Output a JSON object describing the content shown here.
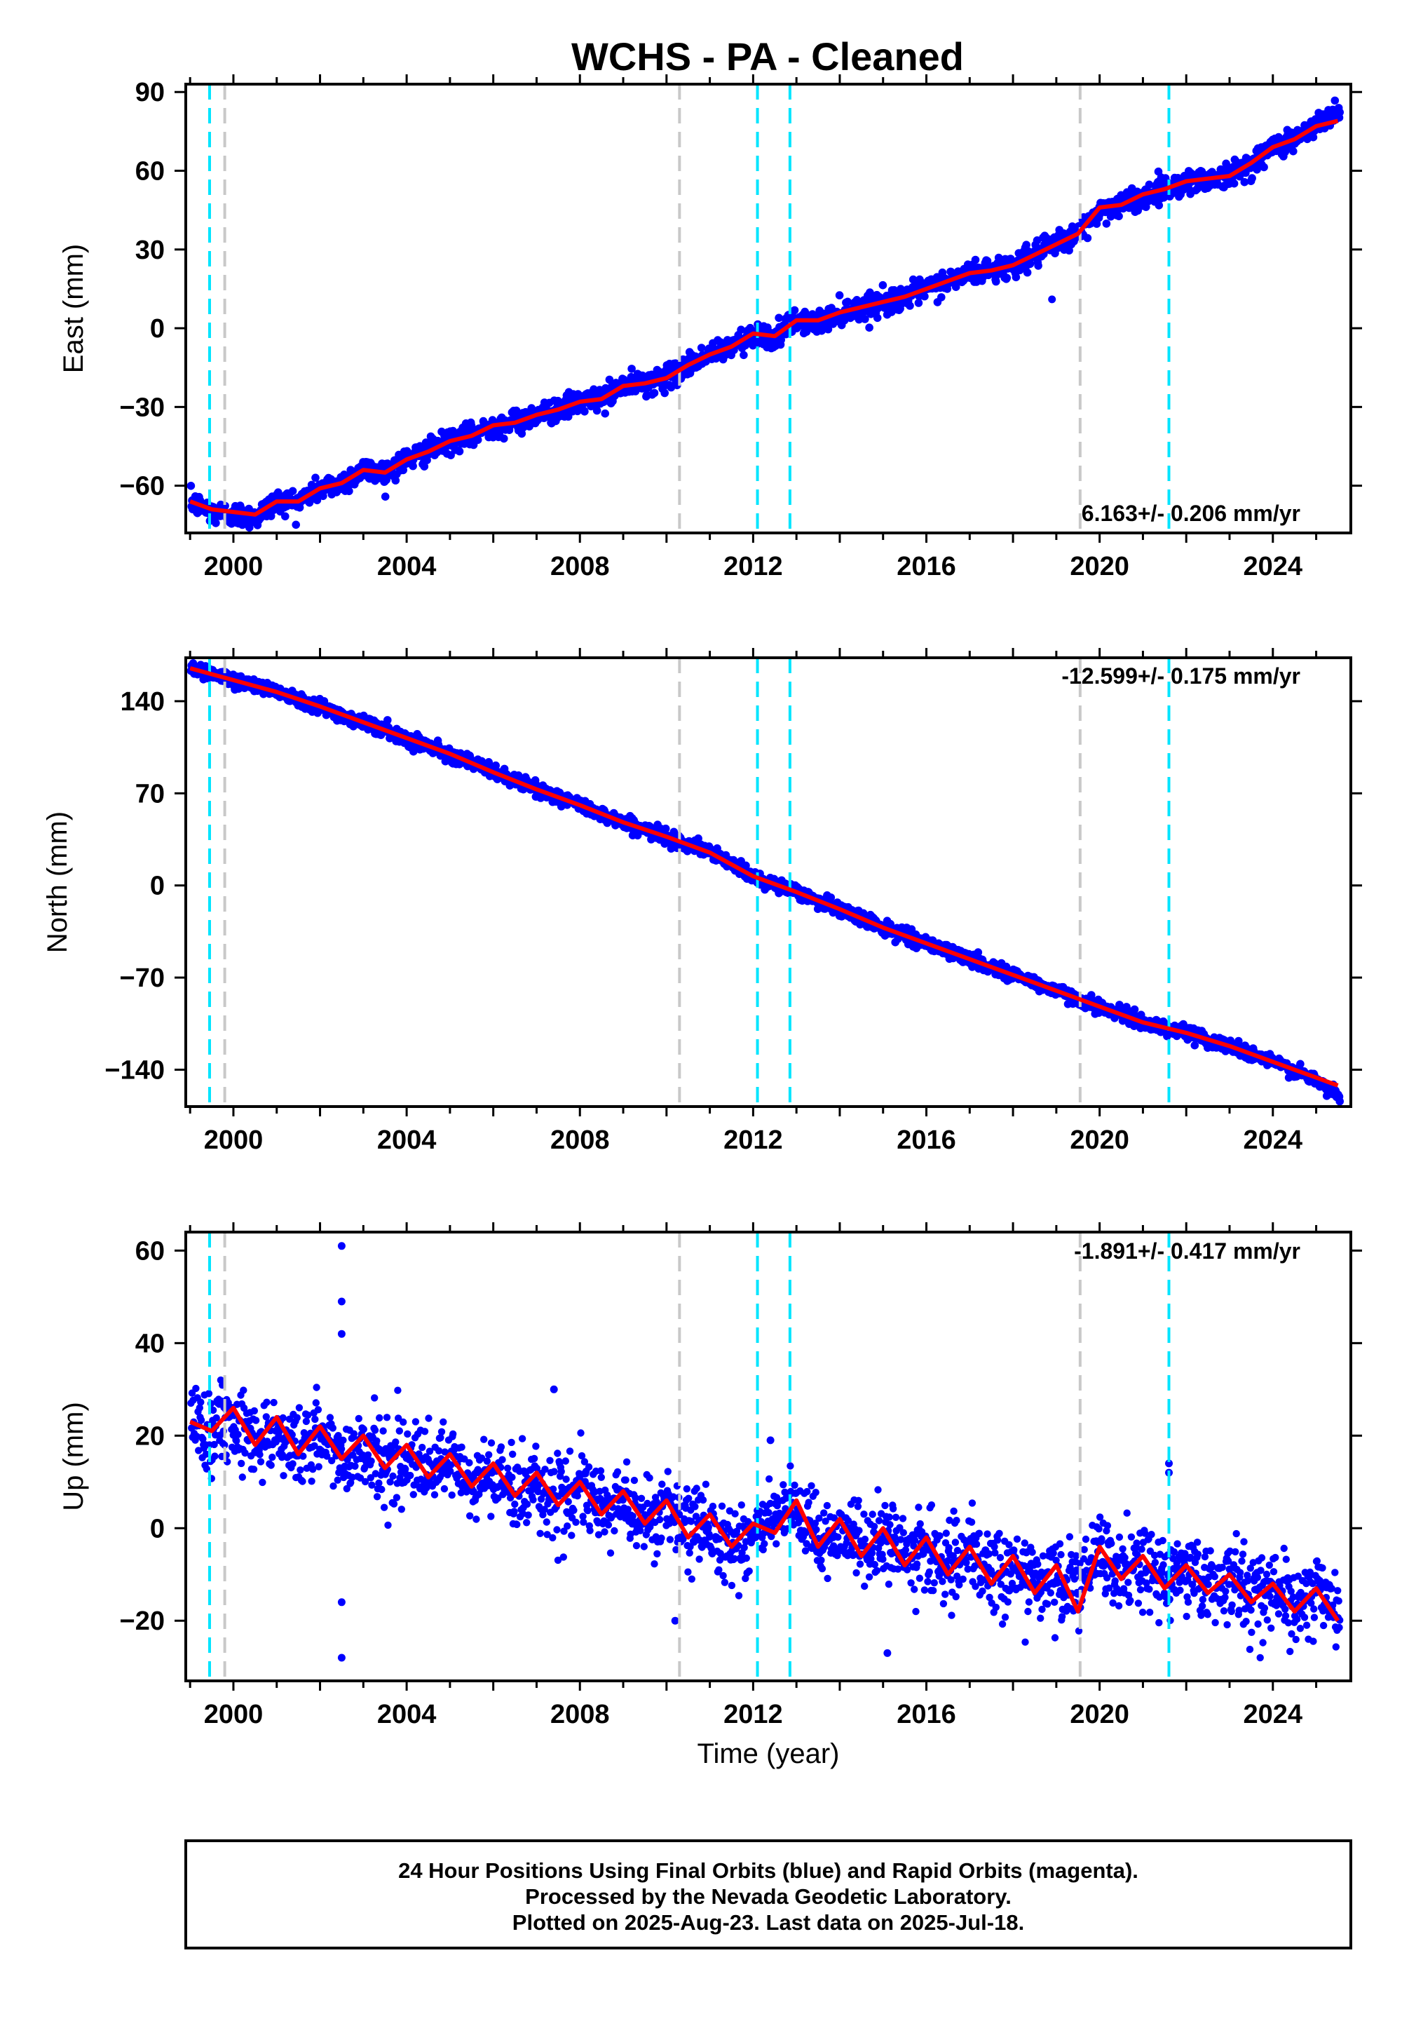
{
  "figure": {
    "title": "WCHS  - PA - Cleaned",
    "xlabel": "Time (year)",
    "footer": [
      "24 Hour Positions Using Final Orbits (blue) and Rapid Orbits (magenta).",
      "Processed by the Nevada Geodetic Laboratory.",
      "Plotted on 2025-Aug-23. Last data on 2025-Jul-18."
    ]
  },
  "colors": {
    "data": "#0000ff",
    "model": "#ff0000",
    "cyan_line": "#00e5ff",
    "gray_line": "#c8c8c8"
  },
  "chart_data": [
    {
      "type": "scatter",
      "ylabel": "East (mm)",
      "rate_label": "6.163+/- 0.206 mm/yr",
      "xlim": [
        1998.9,
        2025.8
      ],
      "ylim": [
        -78,
        93
      ],
      "yticks": [
        -60,
        -30,
        0,
        30,
        60,
        90
      ],
      "xticks": [
        2000,
        2004,
        2008,
        2012,
        2016,
        2020,
        2024
      ],
      "cyan_events": [
        1999.45,
        2012.1,
        2012.85,
        2021.6
      ],
      "gray_events": [
        1999.8,
        2010.3,
        2019.55
      ],
      "series": [
        {
          "name": "24 Hour Positions (blue)",
          "x": [
            1999.0,
            1999.5,
            2000.0,
            2000.5,
            2001.0,
            2001.5,
            2002.0,
            2002.5,
            2003.0,
            2003.5,
            2004.0,
            2004.5,
            2005.0,
            2005.5,
            2006.0,
            2006.5,
            2007.0,
            2007.5,
            2008.0,
            2008.5,
            2009.0,
            2009.5,
            2010.0,
            2010.5,
            2011.0,
            2011.5,
            2012.0,
            2012.5,
            2013.0,
            2013.5,
            2014.0,
            2014.5,
            2015.0,
            2015.5,
            2016.0,
            2016.5,
            2017.0,
            2017.5,
            2018.0,
            2018.5,
            2019.0,
            2019.5,
            2020.0,
            2020.5,
            2021.0,
            2021.5,
            2022.0,
            2022.5,
            2023.0,
            2023.5,
            2024.0,
            2024.5,
            2025.0,
            2025.5
          ],
          "y": [
            -66,
            -70,
            -71,
            -72,
            -66,
            -66,
            -61,
            -59,
            -54,
            -55,
            -50,
            -47,
            -43,
            -41,
            -37,
            -36,
            -33,
            -31,
            -28,
            -27,
            -22,
            -21,
            -19,
            -14,
            -10,
            -7,
            -2,
            -4,
            3,
            2,
            6,
            8,
            10,
            12,
            15,
            18,
            21,
            22,
            24,
            28,
            32,
            36,
            45,
            47,
            50,
            53,
            56,
            57,
            58,
            63,
            69,
            72,
            77,
            83
          ]
        },
        {
          "name": "Model (red)",
          "x": [
            1999.0,
            1999.5,
            2000.0,
            2000.5,
            2001.0,
            2001.5,
            2002.0,
            2002.5,
            2003.0,
            2003.5,
            2004.0,
            2004.5,
            2005.0,
            2005.5,
            2006.0,
            2006.5,
            2007.0,
            2007.5,
            2008.0,
            2008.5,
            2009.0,
            2009.5,
            2010.0,
            2010.5,
            2011.0,
            2011.5,
            2012.0,
            2012.5,
            2013.0,
            2013.5,
            2014.0,
            2014.5,
            2015.0,
            2015.5,
            2016.0,
            2016.5,
            2017.0,
            2017.5,
            2018.0,
            2018.5,
            2019.0,
            2019.5,
            2020.0,
            2020.5,
            2021.0,
            2021.5,
            2022.0,
            2022.5,
            2023.0,
            2023.5,
            2024.0,
            2024.5,
            2025.0,
            2025.5
          ],
          "y": [
            -66,
            -69,
            -70,
            -71,
            -66,
            -66,
            -61,
            -59,
            -54,
            -55,
            -50,
            -47,
            -43,
            -41,
            -37,
            -36,
            -33,
            -31,
            -28,
            -27,
            -22,
            -21,
            -19,
            -14,
            -10,
            -7,
            -2,
            -3,
            3,
            3,
            6,
            8,
            10,
            12,
            15,
            18,
            21,
            22,
            24,
            28,
            32,
            36,
            46,
            47,
            51,
            53,
            56,
            57,
            58,
            63,
            69,
            72,
            77,
            79
          ]
        }
      ]
    },
    {
      "type": "scatter",
      "ylabel": "North (mm)",
      "rate_label": "-12.599+/- 0.175 mm/yr",
      "xlim": [
        1998.9,
        2025.8
      ],
      "ylim": [
        -168,
        173
      ],
      "yticks": [
        -140,
        -70,
        0,
        70,
        140
      ],
      "xticks": [
        2000,
        2004,
        2008,
        2012,
        2016,
        2020,
        2024
      ],
      "cyan_events": [
        1999.45,
        2012.1,
        2012.85,
        2021.6
      ],
      "gray_events": [
        1999.8,
        2010.3,
        2019.55
      ],
      "series": [
        {
          "name": "24 Hour Positions (blue)",
          "x": [
            1999.0,
            2000.0,
            2001.0,
            2002.0,
            2003.0,
            2004.0,
            2005.0,
            2006.0,
            2007.0,
            2008.0,
            2009.0,
            2010.0,
            2011.0,
            2012.0,
            2013.0,
            2014.0,
            2015.0,
            2016.0,
            2017.0,
            2018.0,
            2019.0,
            2020.0,
            2021.0,
            2022.0,
            2023.0,
            2024.0,
            2025.0,
            2025.5
          ],
          "y": [
            166,
            156,
            148,
            136,
            124,
            112,
            100,
            86,
            73,
            61,
            48,
            37,
            25,
            7,
            -5,
            -18,
            -32,
            -44,
            -56,
            -68,
            -80,
            -92,
            -104,
            -112,
            -122,
            -134,
            -148,
            -160
          ]
        },
        {
          "name": "Model (red)",
          "x": [
            1999.0,
            2000.0,
            2001.0,
            2002.0,
            2003.0,
            2004.0,
            2005.0,
            2006.0,
            2007.0,
            2008.0,
            2009.0,
            2010.0,
            2011.0,
            2012.0,
            2013.0,
            2014.0,
            2015.0,
            2016.0,
            2017.0,
            2018.0,
            2019.0,
            2020.0,
            2021.0,
            2022.0,
            2023.0,
            2024.0,
            2025.0,
            2025.5
          ],
          "y": [
            165,
            156,
            147,
            136,
            124,
            112,
            100,
            86,
            73,
            61,
            48,
            37,
            25,
            7,
            -5,
            -18,
            -32,
            -44,
            -56,
            -68,
            -80,
            -92,
            -104,
            -112,
            -122,
            -134,
            -146,
            -152
          ]
        }
      ]
    },
    {
      "type": "scatter",
      "ylabel": "Up (mm)",
      "rate_label": "-1.891+/- 0.417 mm/yr",
      "xlim": [
        1998.9,
        2025.8
      ],
      "ylim": [
        -33,
        64
      ],
      "yticks": [
        -20,
        0,
        20,
        40,
        60
      ],
      "xticks": [
        2000,
        2004,
        2008,
        2012,
        2016,
        2020,
        2024
      ],
      "cyan_events": [
        1999.45,
        2012.1,
        2012.85,
        2021.6
      ],
      "gray_events": [
        1999.8,
        2010.3,
        2019.55
      ],
      "series": [
        {
          "name": "24 Hour Positions (blue)",
          "x": [
            1999.0,
            1999.5,
            2000.0,
            2000.5,
            2001.0,
            2001.5,
            2002.0,
            2002.5,
            2003.0,
            2003.5,
            2004.0,
            2004.5,
            2005.0,
            2005.5,
            2006.0,
            2006.5,
            2007.0,
            2007.5,
            2008.0,
            2008.5,
            2009.0,
            2009.5,
            2010.0,
            2010.5,
            2011.0,
            2011.5,
            2012.0,
            2012.5,
            2013.0,
            2013.5,
            2014.0,
            2014.5,
            2015.0,
            2015.5,
            2016.0,
            2016.5,
            2017.0,
            2017.5,
            2018.0,
            2018.5,
            2019.0,
            2019.5,
            2020.0,
            2020.5,
            2021.0,
            2021.5,
            2022.0,
            2022.5,
            2023.0,
            2023.5,
            2024.0,
            2024.5,
            2025.0,
            2025.5
          ],
          "y": [
            23,
            22,
            24,
            19,
            21,
            17,
            20,
            15,
            18,
            14,
            15,
            12,
            14,
            9,
            12,
            8,
            10,
            6,
            8,
            4,
            6,
            2,
            4,
            -1,
            1,
            -4,
            -1,
            2,
            3,
            -3,
            0,
            -4,
            -2,
            -6,
            -4,
            -8,
            -6,
            -10,
            -8,
            -12,
            -11,
            -13,
            -6,
            -10,
            -7,
            -12,
            -8,
            -13,
            -10,
            -14,
            -13,
            -17,
            -13,
            -18
          ]
        },
        {
          "name": "Model (red)",
          "x": [
            1999.0,
            1999.5,
            2000.0,
            2000.5,
            2001.0,
            2001.5,
            2002.0,
            2002.5,
            2003.0,
            2003.5,
            2004.0,
            2004.5,
            2005.0,
            2005.5,
            2006.0,
            2006.5,
            2007.0,
            2007.5,
            2008.0,
            2008.5,
            2009.0,
            2009.5,
            2010.0,
            2010.5,
            2011.0,
            2011.5,
            2012.0,
            2012.5,
            2013.0,
            2013.5,
            2014.0,
            2014.5,
            2015.0,
            2015.5,
            2016.0,
            2016.5,
            2017.0,
            2017.5,
            2018.0,
            2018.5,
            2019.0,
            2019.5,
            2020.0,
            2020.5,
            2021.0,
            2021.5,
            2022.0,
            2022.5,
            2023.0,
            2023.5,
            2024.0,
            2024.5,
            2025.0,
            2025.5
          ],
          "y": [
            23,
            21,
            26,
            18,
            24,
            16,
            22,
            15,
            20,
            13,
            18,
            11,
            16,
            9,
            14,
            7,
            12,
            5,
            10,
            3,
            8,
            1,
            6,
            -2,
            3,
            -4,
            1,
            -1,
            6,
            -4,
            2,
            -6,
            0,
            -8,
            -2,
            -10,
            -4,
            -12,
            -6,
            -14,
            -8,
            -18,
            -4,
            -11,
            -6,
            -13,
            -8,
            -14,
            -10,
            -16,
            -12,
            -18,
            -13,
            -20
          ]
        }
      ]
    }
  ]
}
